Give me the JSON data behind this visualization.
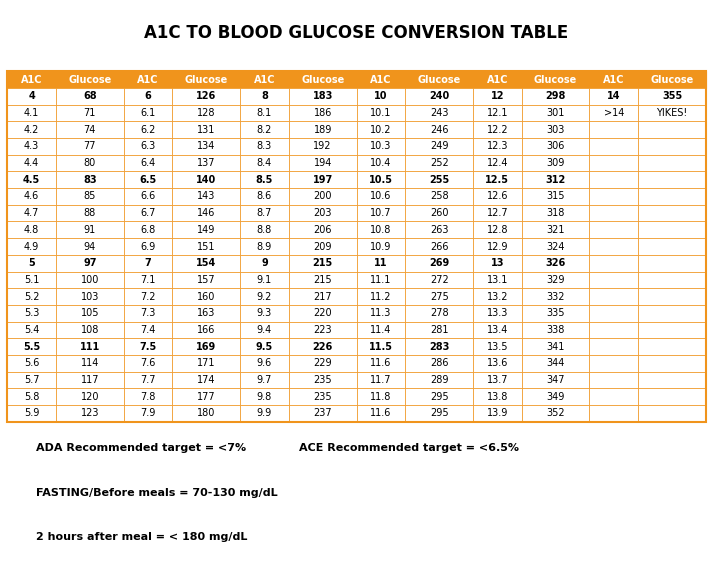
{
  "title": "A1C TO BLOOD GLUCOSE CONVERSION TABLE",
  "title_bg": "#F0941C",
  "header_bg": "#F0941C",
  "table_border_color": "#F0941C",
  "bg_color": "#FFFFFF",
  "bold_a1c_values": [
    "4",
    "4.5",
    "5",
    "5.5",
    "6",
    "6.5",
    "7",
    "7.5",
    "8",
    "8.5",
    "9",
    "9.5",
    "10",
    "10.5",
    "11",
    "11.5",
    "12",
    "12.5",
    "13",
    "14"
  ],
  "columns": [
    "A1C",
    "Glucose",
    "A1C",
    "Glucose",
    "A1C",
    "Glucose",
    "A1C",
    "Glucose",
    "A1C",
    "Glucose",
    "A1C",
    "Glucose"
  ],
  "col1": [
    [
      "4",
      "68"
    ],
    [
      "4.1",
      "71"
    ],
    [
      "4.2",
      "74"
    ],
    [
      "4.3",
      "77"
    ],
    [
      "4.4",
      "80"
    ],
    [
      "4.5",
      "83"
    ],
    [
      "4.6",
      "85"
    ],
    [
      "4.7",
      "88"
    ],
    [
      "4.8",
      "91"
    ],
    [
      "4.9",
      "94"
    ],
    [
      "5",
      "97"
    ],
    [
      "5.1",
      "100"
    ],
    [
      "5.2",
      "103"
    ],
    [
      "5.3",
      "105"
    ],
    [
      "5.4",
      "108"
    ],
    [
      "5.5",
      "111"
    ],
    [
      "5.6",
      "114"
    ],
    [
      "5.7",
      "117"
    ],
    [
      "5.8",
      "120"
    ],
    [
      "5.9",
      "123"
    ]
  ],
  "col2": [
    [
      "6",
      "126"
    ],
    [
      "6.1",
      "128"
    ],
    [
      "6.2",
      "131"
    ],
    [
      "6.3",
      "134"
    ],
    [
      "6.4",
      "137"
    ],
    [
      "6.5",
      "140"
    ],
    [
      "6.6",
      "143"
    ],
    [
      "6.7",
      "146"
    ],
    [
      "6.8",
      "149"
    ],
    [
      "6.9",
      "151"
    ],
    [
      "7",
      "154"
    ],
    [
      "7.1",
      "157"
    ],
    [
      "7.2",
      "160"
    ],
    [
      "7.3",
      "163"
    ],
    [
      "7.4",
      "166"
    ],
    [
      "7.5",
      "169"
    ],
    [
      "7.6",
      "171"
    ],
    [
      "7.7",
      "174"
    ],
    [
      "7.8",
      "177"
    ],
    [
      "7.9",
      "180"
    ]
  ],
  "col3": [
    [
      "8",
      "183"
    ],
    [
      "8.1",
      "186"
    ],
    [
      "8.2",
      "189"
    ],
    [
      "8.3",
      "192"
    ],
    [
      "8.4",
      "194"
    ],
    [
      "8.5",
      "197"
    ],
    [
      "8.6",
      "200"
    ],
    [
      "8.7",
      "203"
    ],
    [
      "8.8",
      "206"
    ],
    [
      "8.9",
      "209"
    ],
    [
      "9",
      "215"
    ],
    [
      "9.1",
      "215"
    ],
    [
      "9.2",
      "217"
    ],
    [
      "9.3",
      "220"
    ],
    [
      "9.4",
      "223"
    ],
    [
      "9.5",
      "226"
    ],
    [
      "9.6",
      "229"
    ],
    [
      "9.7",
      "235"
    ],
    [
      "9.8",
      "235"
    ],
    [
      "9.9",
      "237"
    ]
  ],
  "col4": [
    [
      "10",
      "240"
    ],
    [
      "10.1",
      "243"
    ],
    [
      "10.2",
      "246"
    ],
    [
      "10.3",
      "249"
    ],
    [
      "10.4",
      "252"
    ],
    [
      "10.5",
      "255"
    ],
    [
      "10.6",
      "258"
    ],
    [
      "10.7",
      "260"
    ],
    [
      "10.8",
      "263"
    ],
    [
      "10.9",
      "266"
    ],
    [
      "11",
      "269"
    ],
    [
      "11.1",
      "272"
    ],
    [
      "11.2",
      "275"
    ],
    [
      "11.3",
      "278"
    ],
    [
      "11.4",
      "281"
    ],
    [
      "11.5",
      "283"
    ],
    [
      "11.6",
      "286"
    ],
    [
      "11.7",
      "289"
    ],
    [
      "11.8",
      "295"
    ],
    [
      "11.6",
      "295"
    ]
  ],
  "col5": [
    [
      "12",
      "298"
    ],
    [
      "12.1",
      "301"
    ],
    [
      "12.2",
      "303"
    ],
    [
      "12.3",
      "306"
    ],
    [
      "12.4",
      "309"
    ],
    [
      "12.5",
      "312"
    ],
    [
      "12.6",
      "315"
    ],
    [
      "12.7",
      "318"
    ],
    [
      "12.8",
      "321"
    ],
    [
      "12.9",
      "324"
    ],
    [
      "13",
      "326"
    ],
    [
      "13.1",
      "329"
    ],
    [
      "13.2",
      "332"
    ],
    [
      "13.3",
      "335"
    ],
    [
      "13.4",
      "338"
    ],
    [
      "13.5",
      "341"
    ],
    [
      "13.6",
      "344"
    ],
    [
      "13.7",
      "347"
    ],
    [
      "13.8",
      "349"
    ],
    [
      "13.9",
      "352"
    ]
  ],
  "col6": [
    [
      "14",
      "355"
    ],
    [
      ">14",
      "YIKES!"
    ],
    [
      "",
      ""
    ],
    [
      "",
      ""
    ],
    [
      "",
      ""
    ],
    [
      "",
      ""
    ],
    [
      "",
      ""
    ],
    [
      "",
      ""
    ],
    [
      "",
      ""
    ],
    [
      "",
      ""
    ],
    [
      "",
      ""
    ],
    [
      "",
      ""
    ],
    [
      "",
      ""
    ],
    [
      "",
      ""
    ],
    [
      "",
      ""
    ],
    [
      "",
      ""
    ],
    [
      "",
      ""
    ],
    [
      "",
      ""
    ],
    [
      "",
      ""
    ],
    [
      "",
      ""
    ]
  ],
  "footer_line1a": "ADA Recommended target = <7%",
  "footer_line1b": "ACE Recommended target = <6.5%",
  "footer_line2": "FASTING/Before meals = 70-130 mg/dL",
  "footer_line3": "2 hours after meal = < 180 mg/dL",
  "title_fontsize": 12,
  "header_fontsize": 7,
  "cell_fontsize": 7,
  "footer_fontsize": 8
}
